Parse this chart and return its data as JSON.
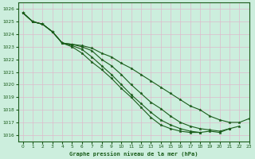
{
  "title": "Graphe pression niveau de la mer (hPa)",
  "bg_color": "#cceedd",
  "grid_color": "#aacccc",
  "line_color": "#1a5c1a",
  "xlim": [
    -0.5,
    23
  ],
  "ylim": [
    1015.5,
    1026.5
  ],
  "yticks": [
    1016,
    1017,
    1018,
    1019,
    1020,
    1021,
    1022,
    1023,
    1024,
    1025,
    1026
  ],
  "xticks": [
    0,
    1,
    2,
    3,
    4,
    5,
    6,
    7,
    8,
    9,
    10,
    11,
    12,
    13,
    14,
    15,
    16,
    17,
    18,
    19,
    20,
    21,
    22,
    23
  ],
  "series": [
    [
      1025.7,
      1025.0,
      1024.8,
      1024.2,
      1023.3,
      1023.2,
      1023.1,
      1022.9,
      1022.5,
      1022.2,
      1021.7,
      1021.3,
      1020.8,
      1020.3,
      1019.8,
      1019.3,
      1018.8,
      1018.3,
      1018.0,
      1017.5,
      1017.2,
      1017.0,
      1017.0,
      1017.3
    ],
    [
      1025.7,
      1025.0,
      1024.8,
      1024.2,
      1023.3,
      1023.2,
      1023.0,
      1022.7,
      1022.0,
      1021.5,
      1020.8,
      1020.0,
      1019.3,
      1018.6,
      1018.1,
      1017.5,
      1017.0,
      1016.7,
      1016.5,
      1016.4,
      1016.3,
      1016.5,
      1016.7,
      null
    ],
    [
      1025.7,
      1025.0,
      1024.8,
      1024.2,
      1023.3,
      1023.1,
      1022.8,
      1022.2,
      1021.5,
      1020.8,
      1020.0,
      1019.2,
      1018.5,
      1017.8,
      1017.2,
      1016.8,
      1016.5,
      1016.3,
      1016.2,
      1016.3,
      1016.2,
      1016.5,
      null,
      null
    ],
    [
      1025.7,
      1025.0,
      1024.8,
      1024.2,
      1023.3,
      1023.0,
      1022.5,
      1021.8,
      1021.2,
      1020.5,
      1019.7,
      1019.0,
      1018.2,
      1017.4,
      1016.8,
      1016.5,
      1016.3,
      1016.2,
      1016.2,
      null,
      null,
      null,
      null,
      null
    ]
  ]
}
